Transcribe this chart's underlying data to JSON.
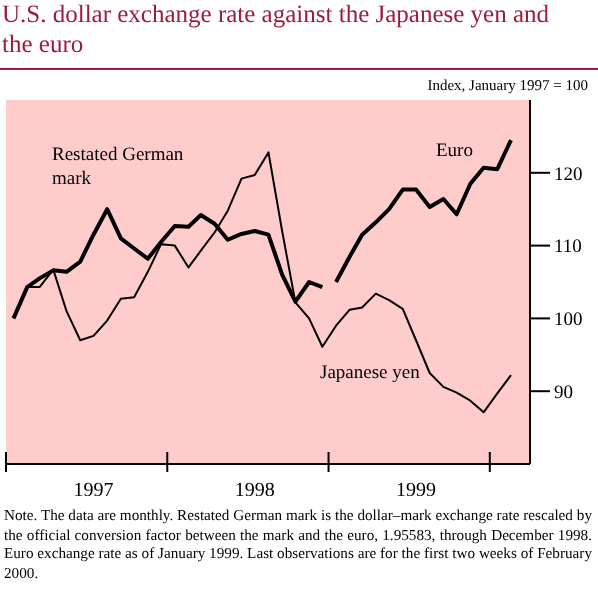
{
  "chart_data": {
    "type": "line",
    "title": "U.S. dollar exchange rate against the Japanese yen and the euro",
    "ylabel": "Index, January 1997 = 100",
    "x": [
      "1997-01",
      "1997-02",
      "1997-03",
      "1997-04",
      "1997-05",
      "1997-06",
      "1997-07",
      "1997-08",
      "1997-09",
      "1997-10",
      "1997-11",
      "1997-12",
      "1998-01",
      "1998-02",
      "1998-03",
      "1998-04",
      "1998-05",
      "1998-06",
      "1998-07",
      "1998-08",
      "1998-09",
      "1998-10",
      "1998-11",
      "1998-12",
      "1999-01",
      "1999-02",
      "1999-03",
      "1999-04",
      "1999-05",
      "1999-06",
      "1999-07",
      "1999-08",
      "1999-09",
      "1999-10",
      "1999-11",
      "1999-12",
      "2000-01",
      "2000-02"
    ],
    "series": [
      {
        "name": "Restated German mark",
        "color": "#000000",
        "x": [
          "1997-01",
          "1997-02",
          "1997-03",
          "1997-04",
          "1997-05",
          "1997-06",
          "1997-07",
          "1997-08",
          "1997-09",
          "1997-10",
          "1997-11",
          "1997-12",
          "1998-01",
          "1998-02",
          "1998-03",
          "1998-04",
          "1998-05",
          "1998-06",
          "1998-07",
          "1998-08",
          "1998-09",
          "1998-10",
          "1998-11",
          "1998-12"
        ],
        "values": [
          100,
          104.3,
          105.5,
          106.6,
          106.4,
          107.8,
          111.5,
          115,
          111,
          109.6,
          108.2,
          110.5,
          112.7,
          112.6,
          114.2,
          113,
          110.8,
          111.6,
          112,
          111.5,
          106,
          102.3,
          105,
          104.3
        ]
      },
      {
        "name": "Euro",
        "color": "#000000",
        "x": [
          "1999-01",
          "1999-02",
          "1999-03",
          "1999-04",
          "1999-05",
          "1999-06",
          "1999-07",
          "1999-08",
          "1999-09",
          "1999-10",
          "1999-11",
          "1999-12",
          "2000-01",
          "2000-02"
        ],
        "values": [
          105,
          108.5,
          111.5,
          113.2,
          115,
          117.7,
          117.7,
          115.3,
          116.4,
          114.3,
          118.5,
          120.7,
          120.5,
          124.5
        ]
      },
      {
        "name": "Japanese yen",
        "color": "#000000",
        "values": [
          100,
          104.3,
          104.3,
          106.7,
          101,
          97,
          97.6,
          99.7,
          102.7,
          102.9,
          106.4,
          110.2,
          110,
          107,
          109.3,
          111.8,
          114.8,
          119.2,
          119.7,
          122.8,
          112,
          102.2,
          100,
          96.1,
          99,
          101.2,
          101.5,
          103.4,
          102.5,
          101.3,
          97,
          92.5,
          90.6,
          89.8,
          88.7,
          87.1,
          89.7,
          92.2
        ]
      }
    ],
    "xlim": [
      "1996-12-15",
      "2000-03-15"
    ],
    "xticks": [
      {
        "value": "1996-12-15",
        "label": null
      },
      {
        "value": "1997-07",
        "label": "1997"
      },
      {
        "value": "1997-12-15",
        "label": null
      },
      {
        "value": "1998-07",
        "label": "1998"
      },
      {
        "value": "1998-12-15",
        "label": null
      },
      {
        "value": "1999-07",
        "label": "1999"
      },
      {
        "value": "1999-12-15",
        "label": null
      }
    ],
    "ylim": [
      80,
      130
    ],
    "yticks": [
      90,
      100,
      110,
      120
    ],
    "marker": "none",
    "legend": false,
    "grid": false,
    "annotations": [
      "Note. The data are monthly. Restated German mark is the dollar–mark exchange rate rescaled by the official conversion factor between the mark and the euro, 1.95583, through December 1998. Euro exchange rate as of January 1999. Last observations are for the first two weeks of February 2000."
    ]
  }
}
